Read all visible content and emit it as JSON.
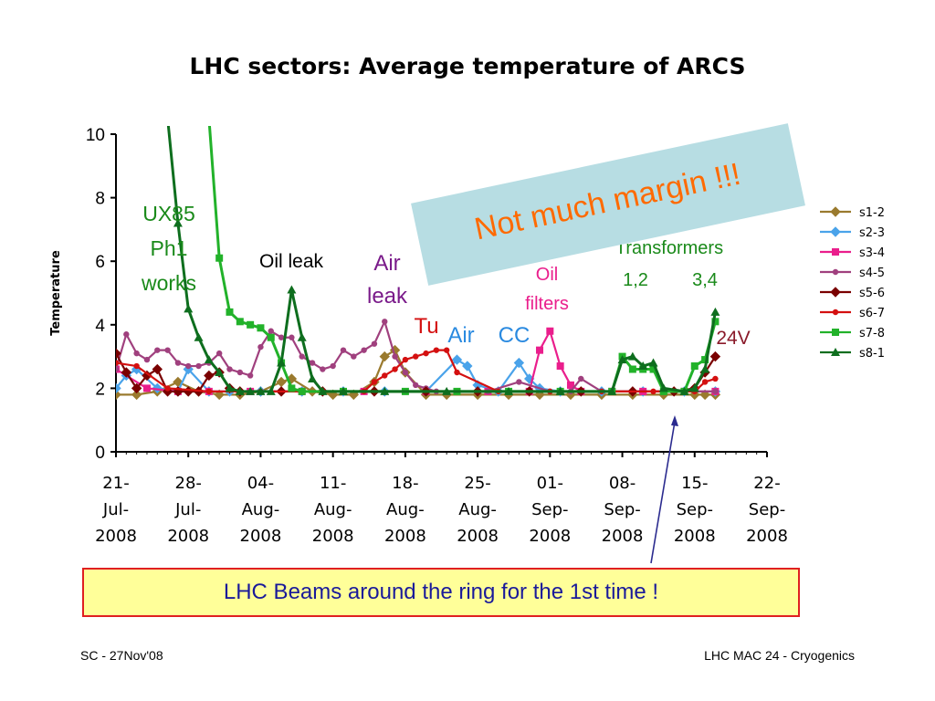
{
  "slide": {
    "title": "LHC sectors:  Average temperature of ARCS",
    "footer_left": "SC - 27Nov'08",
    "footer_right": "LHC MAC 24 - Cryogenics",
    "beams_box": "LHC Beams around the ring for the 1st time !",
    "callout": "Not much margin !!!"
  },
  "colors": {
    "s1-2": "#9a7a2e",
    "s2-3": "#4aa3ea",
    "s3-4": "#ea1e8c",
    "s4-5": "#a0407e",
    "s5-6": "#7a0000",
    "s6-7": "#d41010",
    "s7-8": "#22b22a",
    "s8-1": "#0e6e1e",
    "arrow": "#2b2b8f"
  },
  "chart_data": {
    "type": "line",
    "x_axis": "date (days)",
    "xticks": [
      "21-Jul-2008",
      "28-Jul-2008",
      "04-Aug-2008",
      "11-Aug-2008",
      "18-Aug-2008",
      "25-Aug-2008",
      "01-Sep-2008",
      "08-Sep-2008",
      "15-Sep-2008",
      "22-Sep-2008"
    ],
    "xlim": [
      "2008-07-21",
      "2008-09-22"
    ],
    "ylabel": "Temperature",
    "ylim": [
      0,
      10
    ],
    "yticks": [
      0,
      2,
      4,
      6,
      8,
      10
    ],
    "legend_position": "right",
    "annotations": [
      {
        "id": "ux85",
        "text": [
          "UX85",
          "Ph1",
          "works"
        ],
        "color": "#1a8a1a"
      },
      {
        "id": "oil-leak",
        "text": [
          "Oil leak"
        ],
        "color": "#000000"
      },
      {
        "id": "air-leak",
        "text": [
          "Air",
          "leak"
        ],
        "color": "#7a1a8a"
      },
      {
        "id": "tu",
        "text": [
          "Tu"
        ],
        "color": "#d41010"
      },
      {
        "id": "air",
        "text": [
          "Air"
        ],
        "color": "#2a8ae0"
      },
      {
        "id": "cc",
        "text": [
          "CC"
        ],
        "color": "#2a8ae0"
      },
      {
        "id": "oil-filters",
        "text": [
          "Oil",
          "filters"
        ],
        "color": "#ea1e8c"
      },
      {
        "id": "transformers",
        "text": [
          "Transformers"
        ],
        "color": "#1a8a1a"
      },
      {
        "id": "t12",
        "text": [
          "1,2"
        ],
        "color": "#1a8a1a"
      },
      {
        "id": "t34",
        "text": [
          "3,4"
        ],
        "color": "#1a8a1a"
      },
      {
        "id": "24v",
        "text": [
          "24V"
        ],
        "color": "#8a1a2a"
      }
    ],
    "series": [
      {
        "name": "s1-2",
        "marker": "diamond",
        "x": [
          "2008-07-21",
          "2008-07-23",
          "2008-07-25",
          "2008-07-27",
          "2008-07-29",
          "2008-07-31",
          "2008-08-02",
          "2008-08-04",
          "2008-08-06",
          "2008-08-07",
          "2008-08-09",
          "2008-08-11",
          "2008-08-13",
          "2008-08-15",
          "2008-08-16",
          "2008-08-17",
          "2008-08-18",
          "2008-08-20",
          "2008-08-22",
          "2008-08-25",
          "2008-08-28",
          "2008-08-31",
          "2008-09-03",
          "2008-09-06",
          "2008-09-09",
          "2008-09-12",
          "2008-09-15",
          "2008-09-16",
          "2008-09-17"
        ],
        "y": [
          1.8,
          1.8,
          1.9,
          2.2,
          1.9,
          1.8,
          1.8,
          1.9,
          2.2,
          2.3,
          1.9,
          1.8,
          1.8,
          2.2,
          3.0,
          3.2,
          2.5,
          1.8,
          1.8,
          1.8,
          1.8,
          1.8,
          1.8,
          1.8,
          1.8,
          1.8,
          1.8,
          1.8,
          1.8
        ]
      },
      {
        "name": "s2-3",
        "marker": "diamond",
        "x": [
          "2008-07-21",
          "2008-07-22",
          "2008-07-23",
          "2008-07-25",
          "2008-07-27",
          "2008-07-28",
          "2008-07-30",
          "2008-08-01",
          "2008-08-04",
          "2008-08-08",
          "2008-08-12",
          "2008-08-16",
          "2008-08-20",
          "2008-08-23",
          "2008-08-24",
          "2008-08-25",
          "2008-08-27",
          "2008-08-29",
          "2008-08-30",
          "2008-08-31",
          "2008-09-02",
          "2008-09-06",
          "2008-09-10",
          "2008-09-14",
          "2008-09-17"
        ],
        "y": [
          2.0,
          2.4,
          2.6,
          2.0,
          1.9,
          2.6,
          1.9,
          1.9,
          1.9,
          1.9,
          1.9,
          1.9,
          1.9,
          2.9,
          2.7,
          2.1,
          1.9,
          2.8,
          2.3,
          2.0,
          1.9,
          1.9,
          1.9,
          1.9,
          1.9
        ]
      },
      {
        "name": "s3-4",
        "marker": "square",
        "x": [
          "2008-07-21",
          "2008-07-24",
          "2008-07-27",
          "2008-07-30",
          "2008-08-03",
          "2008-08-08",
          "2008-08-14",
          "2008-08-20",
          "2008-08-26",
          "2008-08-30",
          "2008-08-31",
          "2008-09-01",
          "2008-09-02",
          "2008-09-03",
          "2008-09-04",
          "2008-09-07",
          "2008-09-10",
          "2008-09-14",
          "2008-09-17"
        ],
        "y": [
          2.6,
          2.0,
          1.9,
          1.9,
          1.9,
          1.9,
          1.9,
          1.9,
          1.9,
          1.9,
          3.2,
          3.8,
          2.7,
          2.1,
          1.9,
          1.9,
          1.9,
          1.9,
          1.9
        ]
      },
      {
        "name": "s4-5",
        "marker": "circle",
        "x": [
          "2008-07-21",
          "2008-07-22",
          "2008-07-23",
          "2008-07-24",
          "2008-07-25",
          "2008-07-26",
          "2008-07-27",
          "2008-07-28",
          "2008-07-29",
          "2008-07-30",
          "2008-07-31",
          "2008-08-01",
          "2008-08-02",
          "2008-08-03",
          "2008-08-04",
          "2008-08-05",
          "2008-08-06",
          "2008-08-07",
          "2008-08-08",
          "2008-08-09",
          "2008-08-10",
          "2008-08-11",
          "2008-08-12",
          "2008-08-13",
          "2008-08-14",
          "2008-08-15",
          "2008-08-16",
          "2008-08-17",
          "2008-08-18",
          "2008-08-19",
          "2008-08-20",
          "2008-08-21",
          "2008-08-23",
          "2008-08-26",
          "2008-08-29",
          "2008-09-01",
          "2008-09-03",
          "2008-09-04",
          "2008-09-06",
          "2008-09-09",
          "2008-09-12",
          "2008-09-15",
          "2008-09-17"
        ],
        "y": [
          2.6,
          3.7,
          3.1,
          2.9,
          3.2,
          3.2,
          2.8,
          2.7,
          2.7,
          2.8,
          3.1,
          2.6,
          2.5,
          2.4,
          3.3,
          3.8,
          3.6,
          3.6,
          3.0,
          2.8,
          2.6,
          2.7,
          3.2,
          3.0,
          3.2,
          3.4,
          4.1,
          3.0,
          2.5,
          2.1,
          2.0,
          1.9,
          1.9,
          1.9,
          2.2,
          1.9,
          1.9,
          2.3,
          1.9,
          1.9,
          1.9,
          1.9,
          1.9
        ]
      },
      {
        "name": "s5-6",
        "marker": "diamond",
        "x": [
          "2008-07-21",
          "2008-07-22",
          "2008-07-23",
          "2008-07-24",
          "2008-07-25",
          "2008-07-26",
          "2008-07-27",
          "2008-07-28",
          "2008-07-29",
          "2008-07-30",
          "2008-07-31",
          "2008-08-01",
          "2008-08-02",
          "2008-08-06",
          "2008-08-10",
          "2008-08-15",
          "2008-08-20",
          "2008-08-25",
          "2008-08-30",
          "2008-09-04",
          "2008-09-09",
          "2008-09-13",
          "2008-09-15",
          "2008-09-16",
          "2008-09-17"
        ],
        "y": [
          3.1,
          2.5,
          2.0,
          2.4,
          2.6,
          1.9,
          1.9,
          1.9,
          1.9,
          2.4,
          2.5,
          2.0,
          1.9,
          1.9,
          1.9,
          1.9,
          1.9,
          1.9,
          1.9,
          1.9,
          1.9,
          1.9,
          2.0,
          2.5,
          3.0
        ]
      },
      {
        "name": "s6-7",
        "marker": "circle",
        "x": [
          "2008-07-21",
          "2008-07-23",
          "2008-07-26",
          "2008-07-30",
          "2008-08-04",
          "2008-08-10",
          "2008-08-14",
          "2008-08-15",
          "2008-08-16",
          "2008-08-17",
          "2008-08-18",
          "2008-08-19",
          "2008-08-20",
          "2008-08-21",
          "2008-08-22",
          "2008-08-23",
          "2008-08-27",
          "2008-09-01",
          "2008-09-06",
          "2008-09-11",
          "2008-09-15",
          "2008-09-16",
          "2008-09-17"
        ],
        "y": [
          2.8,
          2.7,
          2.0,
          1.9,
          1.9,
          1.9,
          1.9,
          2.2,
          2.4,
          2.6,
          2.9,
          3.0,
          3.1,
          3.2,
          3.2,
          2.5,
          1.9,
          1.9,
          1.9,
          1.9,
          1.9,
          2.2,
          2.3
        ]
      },
      {
        "name": "s7-8",
        "marker": "square",
        "x": [
          "2008-07-30",
          "2008-07-31",
          "2008-08-01",
          "2008-08-02",
          "2008-08-03",
          "2008-08-04",
          "2008-08-05",
          "2008-08-06",
          "2008-08-07",
          "2008-08-08",
          "2008-08-12",
          "2008-08-18",
          "2008-08-23",
          "2008-08-28",
          "2008-09-02",
          "2008-09-07",
          "2008-09-08",
          "2008-09-09",
          "2008-09-10",
          "2008-09-11",
          "2008-09-12",
          "2008-09-14",
          "2008-09-15",
          "2008-09-16",
          "2008-09-17"
        ],
        "y": [
          10.5,
          6.1,
          4.4,
          4.1,
          4.0,
          3.9,
          3.6,
          2.8,
          2.0,
          1.9,
          1.9,
          1.9,
          1.9,
          1.9,
          1.9,
          1.9,
          3.0,
          2.6,
          2.6,
          2.6,
          1.9,
          1.9,
          2.7,
          2.9,
          4.1
        ]
      },
      {
        "name": "s8-1",
        "marker": "triangle",
        "x": [
          "2008-07-26",
          "2008-07-27",
          "2008-07-28",
          "2008-07-29",
          "2008-07-30",
          "2008-07-31",
          "2008-08-01",
          "2008-08-02",
          "2008-08-03",
          "2008-08-04",
          "2008-08-05",
          "2008-08-06",
          "2008-08-07",
          "2008-08-08",
          "2008-08-09",
          "2008-08-10",
          "2008-08-12",
          "2008-08-16",
          "2008-08-22",
          "2008-08-28",
          "2008-09-02",
          "2008-09-07",
          "2008-09-08",
          "2008-09-09",
          "2008-09-10",
          "2008-09-11",
          "2008-09-12",
          "2008-09-14",
          "2008-09-15",
          "2008-09-16",
          "2008-09-17"
        ],
        "y": [
          10.5,
          7.2,
          4.5,
          3.6,
          2.9,
          2.5,
          2.0,
          1.9,
          1.9,
          1.9,
          1.9,
          2.8,
          5.1,
          3.6,
          2.3,
          1.9,
          1.9,
          1.9,
          1.9,
          1.9,
          1.9,
          1.9,
          2.9,
          3.0,
          2.7,
          2.8,
          2.0,
          1.9,
          2.0,
          2.6,
          4.4
        ]
      }
    ]
  }
}
